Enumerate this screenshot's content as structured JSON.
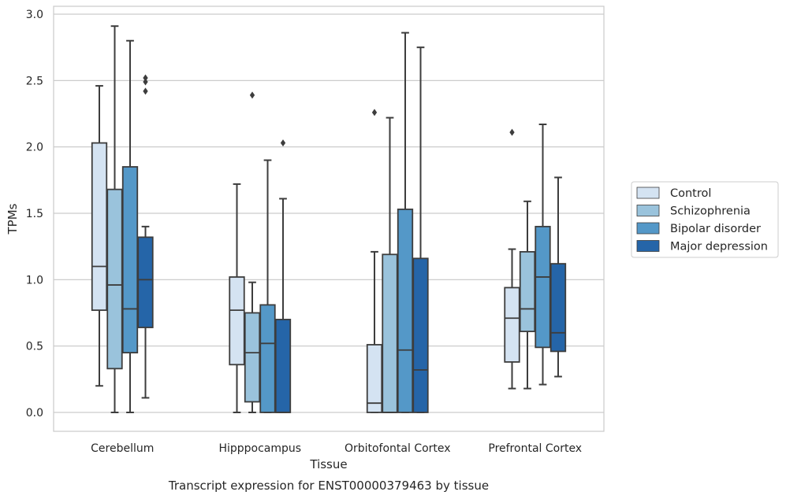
{
  "chart_data": {
    "type": "box",
    "title": "",
    "caption": "Transcript expression for ENST00000379463 by tissue",
    "xlabel": "Tissue",
    "ylabel": "TPMs",
    "ylim": [
      -0.14,
      3.06
    ],
    "yticks": [
      "0.0",
      "0.5",
      "1.0",
      "1.5",
      "2.0",
      "2.5",
      "3.0"
    ],
    "grid": true,
    "legend_position": "right",
    "categories": [
      "Cerebellum",
      "Hipppocampus",
      "Orbitofontal Cortex",
      "Prefrontal Cortex"
    ],
    "series": [
      {
        "name": "Control",
        "color": "#d4e3f2",
        "boxes": [
          {
            "min": 0.2,
            "q1": 0.77,
            "median": 1.1,
            "q3": 2.03,
            "max": 2.46,
            "outliers": []
          },
          {
            "min": 0.0,
            "q1": 0.36,
            "median": 0.77,
            "q3": 1.02,
            "max": 1.72,
            "outliers": []
          },
          {
            "min": 0.0,
            "q1": 0.0,
            "median": 0.07,
            "q3": 0.51,
            "max": 1.21,
            "outliers": [
              2.26
            ]
          },
          {
            "min": 0.18,
            "q1": 0.38,
            "median": 0.71,
            "q3": 0.94,
            "max": 1.23,
            "outliers": [
              2.11
            ]
          }
        ]
      },
      {
        "name": "Schizophrenia",
        "color": "#9ac3dc",
        "boxes": [
          {
            "min": 0.0,
            "q1": 0.33,
            "median": 0.96,
            "q3": 1.68,
            "max": 2.91,
            "outliers": []
          },
          {
            "min": 0.0,
            "q1": 0.08,
            "median": 0.45,
            "q3": 0.75,
            "max": 0.98,
            "outliers": [
              2.39
            ]
          },
          {
            "min": 0.0,
            "q1": 0.0,
            "median": 0.0,
            "q3": 1.19,
            "max": 2.22,
            "outliers": []
          },
          {
            "min": 0.18,
            "q1": 0.61,
            "median": 0.78,
            "q3": 1.21,
            "max": 1.59,
            "outliers": []
          }
        ]
      },
      {
        "name": "Bipolar disorder",
        "color": "#5498c8",
        "boxes": [
          {
            "min": 0.0,
            "q1": 0.45,
            "median": 0.78,
            "q3": 1.85,
            "max": 2.8,
            "outliers": []
          },
          {
            "min": 0.0,
            "q1": 0.0,
            "median": 0.52,
            "q3": 0.81,
            "max": 1.9,
            "outliers": []
          },
          {
            "min": 0.0,
            "q1": 0.0,
            "median": 0.47,
            "q3": 1.53,
            "max": 2.86,
            "outliers": []
          },
          {
            "min": 0.21,
            "q1": 0.49,
            "median": 1.02,
            "q3": 1.4,
            "max": 2.17,
            "outliers": []
          }
        ]
      },
      {
        "name": "Major depression",
        "color": "#2565a8",
        "boxes": [
          {
            "min": 0.11,
            "q1": 0.64,
            "median": 1.0,
            "q3": 1.32,
            "max": 1.4,
            "outliers": [
              2.42,
              2.49,
              2.52
            ]
          },
          {
            "min": 0.0,
            "q1": 0.0,
            "median": 0.0,
            "q3": 0.7,
            "max": 1.61,
            "outliers": [
              2.03
            ]
          },
          {
            "min": 0.0,
            "q1": 0.0,
            "median": 0.32,
            "q3": 1.16,
            "max": 2.75,
            "outliers": []
          },
          {
            "min": 0.27,
            "q1": 0.46,
            "median": 0.6,
            "q3": 1.12,
            "max": 1.77,
            "outliers": []
          }
        ]
      }
    ]
  }
}
